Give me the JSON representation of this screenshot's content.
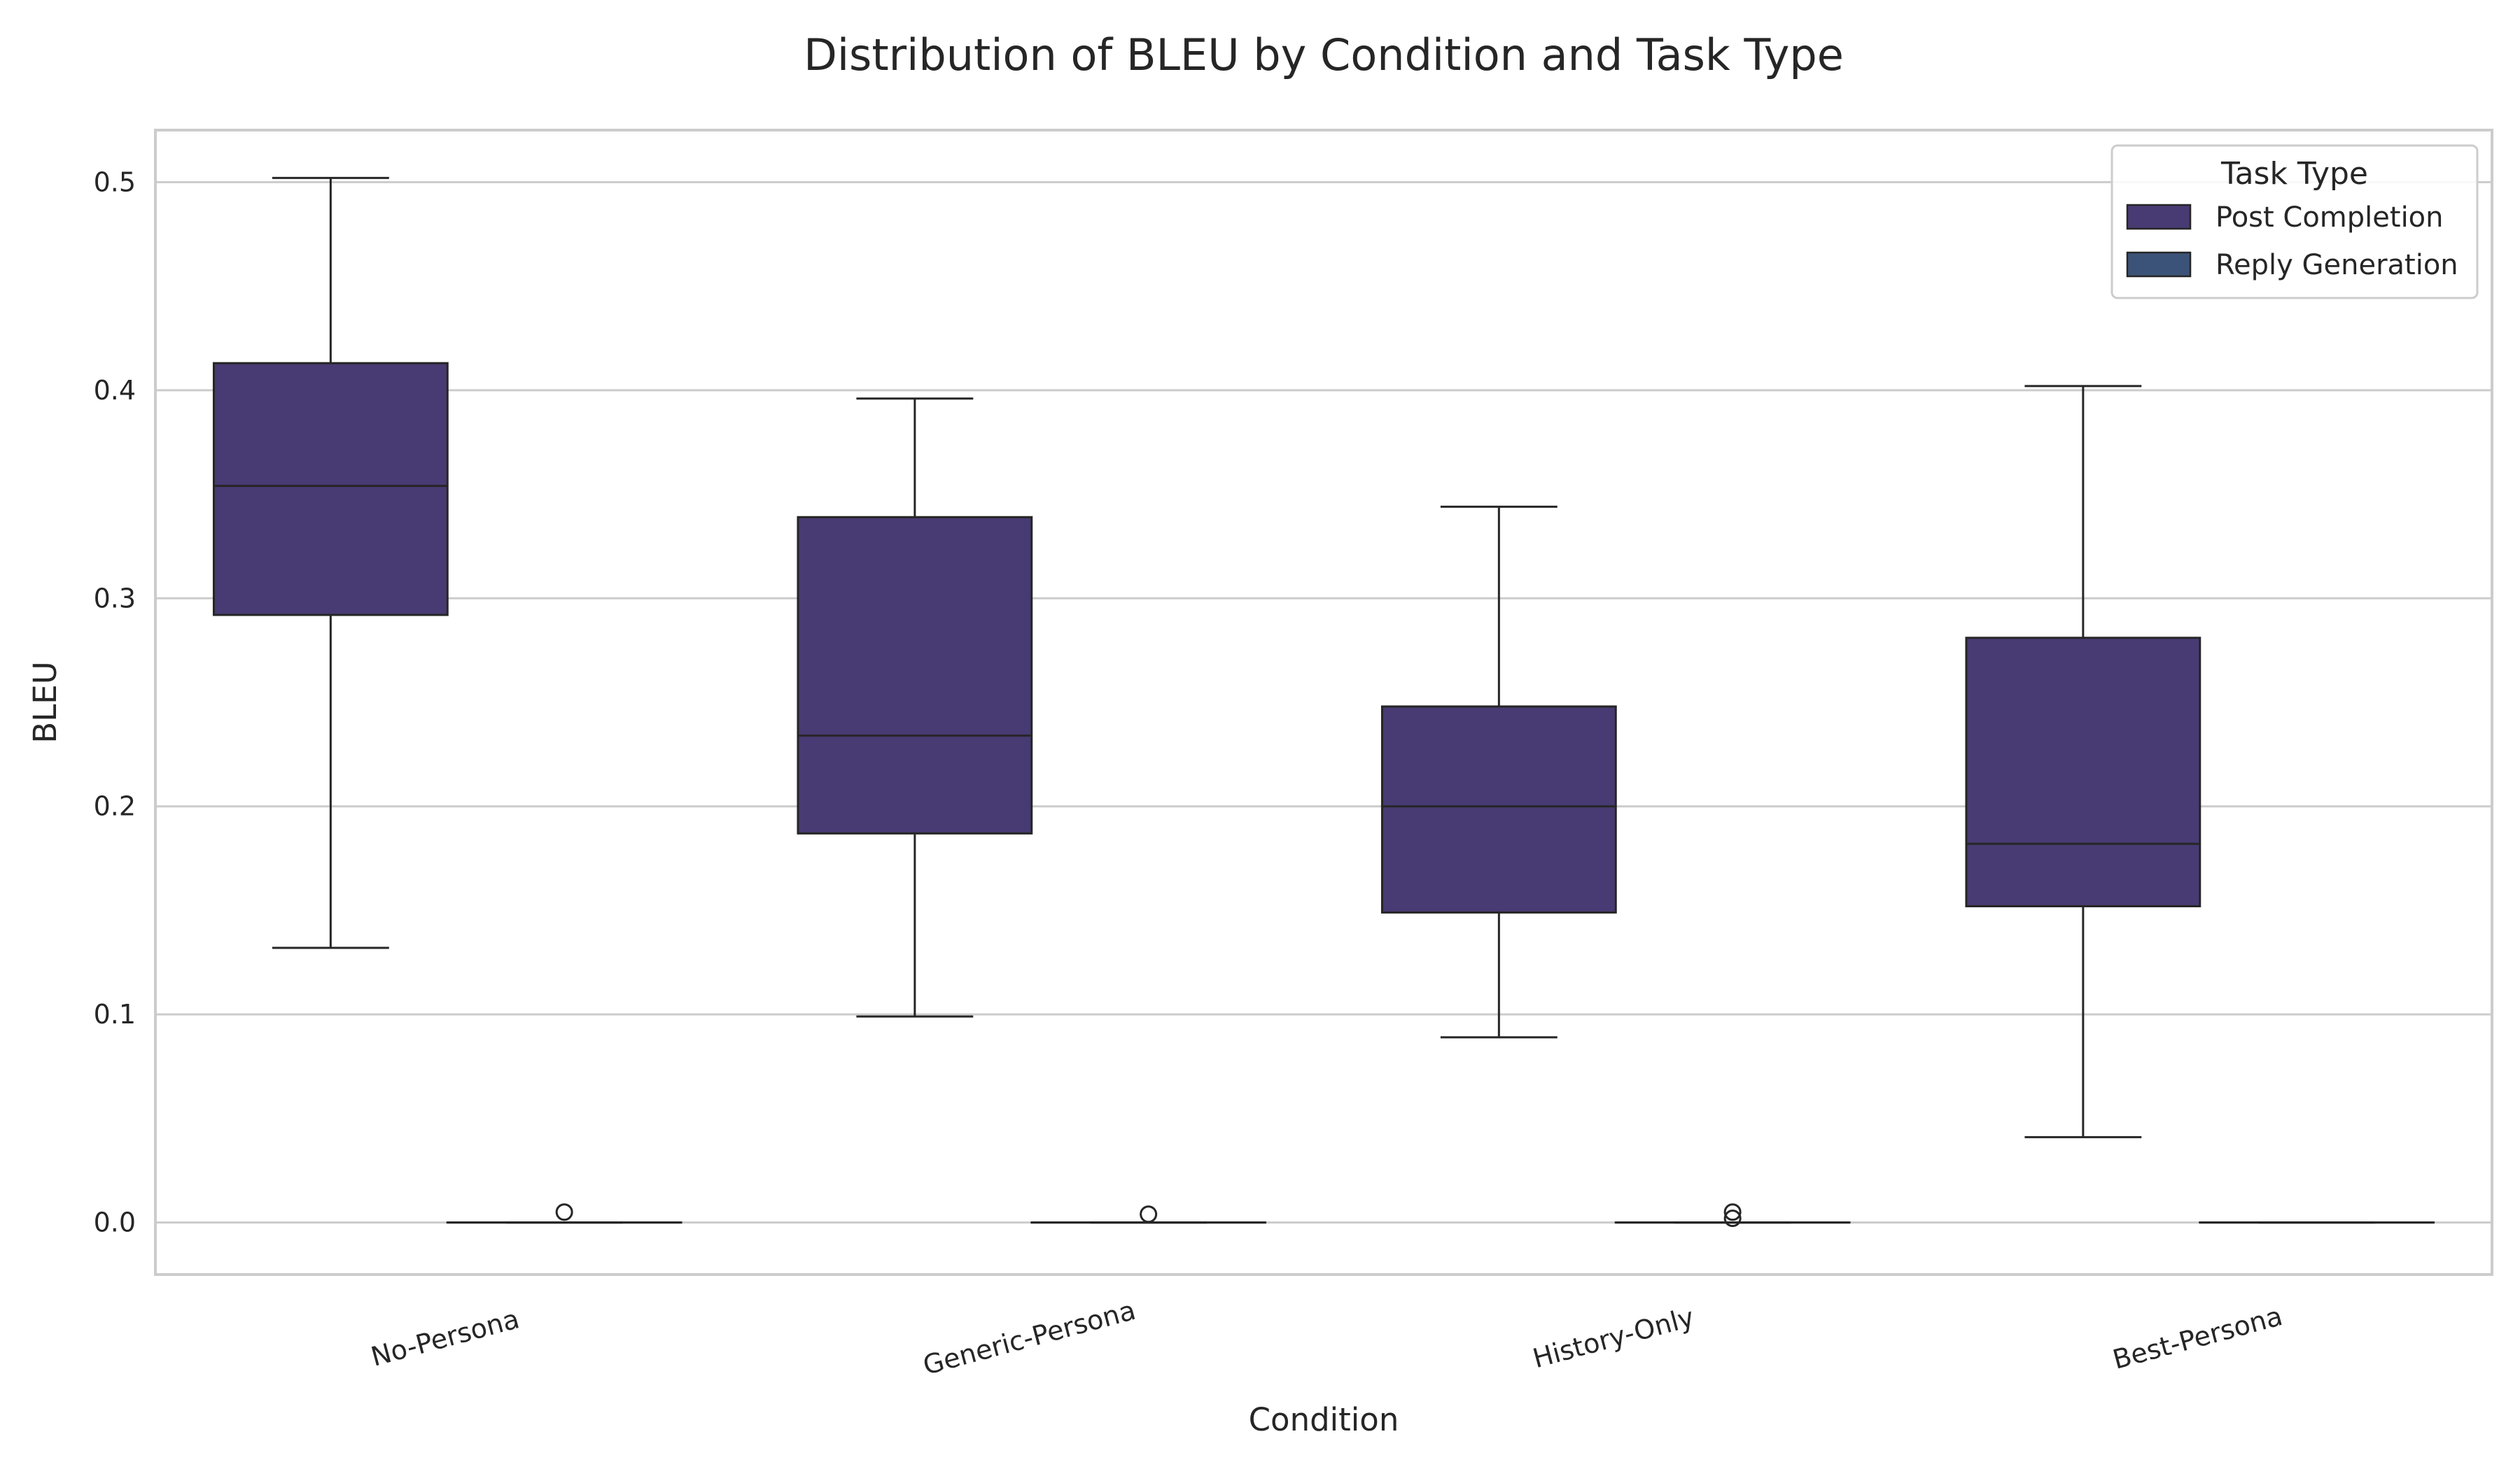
{
  "chart_data": {
    "type": "box",
    "title": "Distribution of BLEU by Condition and Task Type",
    "xlabel": "Condition",
    "ylabel": "BLEU",
    "ylim": [
      -0.025,
      0.525
    ],
    "yticks": [
      "0.0",
      "0.1",
      "0.2",
      "0.3",
      "0.4",
      "0.5"
    ],
    "ytick_values": [
      0.0,
      0.1,
      0.2,
      0.3,
      0.4,
      0.5
    ],
    "grid": true,
    "categories": [
      "No-Persona",
      "Generic-Persona",
      "History-Only",
      "Best-Persona"
    ],
    "legend": {
      "title": "Task Type",
      "placement": "top-right"
    },
    "series": [
      {
        "name": "Post Completion",
        "color": "#483a73",
        "boxes": [
          {
            "whisker_low": 0.132,
            "q1": 0.292,
            "median": 0.354,
            "q3": 0.413,
            "whisker_high": 0.502,
            "outliers": []
          },
          {
            "whisker_low": 0.099,
            "q1": 0.187,
            "median": 0.234,
            "q3": 0.339,
            "whisker_high": 0.396,
            "outliers": []
          },
          {
            "whisker_low": 0.089,
            "q1": 0.149,
            "median": 0.2,
            "q3": 0.248,
            "whisker_high": 0.344,
            "outliers": []
          },
          {
            "whisker_low": 0.041,
            "q1": 0.152,
            "median": 0.182,
            "q3": 0.281,
            "whisker_high": 0.402,
            "outliers": []
          }
        ]
      },
      {
        "name": "Reply Generation",
        "color": "#3b5378",
        "boxes": [
          {
            "whisker_low": 0.0,
            "q1": 0.0,
            "median": 0.0,
            "q3": 0.0,
            "whisker_high": 0.0,
            "outliers": [
              0.005
            ]
          },
          {
            "whisker_low": 0.0,
            "q1": 0.0,
            "median": 0.0,
            "q3": 0.0,
            "whisker_high": 0.0,
            "outliers": [
              0.004
            ]
          },
          {
            "whisker_low": 0.0,
            "q1": 0.0,
            "median": 0.0,
            "q3": 0.0,
            "whisker_high": 0.0,
            "outliers": [
              0.005,
              0.002
            ]
          },
          {
            "whisker_low": 0.0,
            "q1": 0.0,
            "median": 0.0,
            "q3": 0.0,
            "whisker_high": 0.0,
            "outliers": []
          }
        ]
      }
    ]
  }
}
